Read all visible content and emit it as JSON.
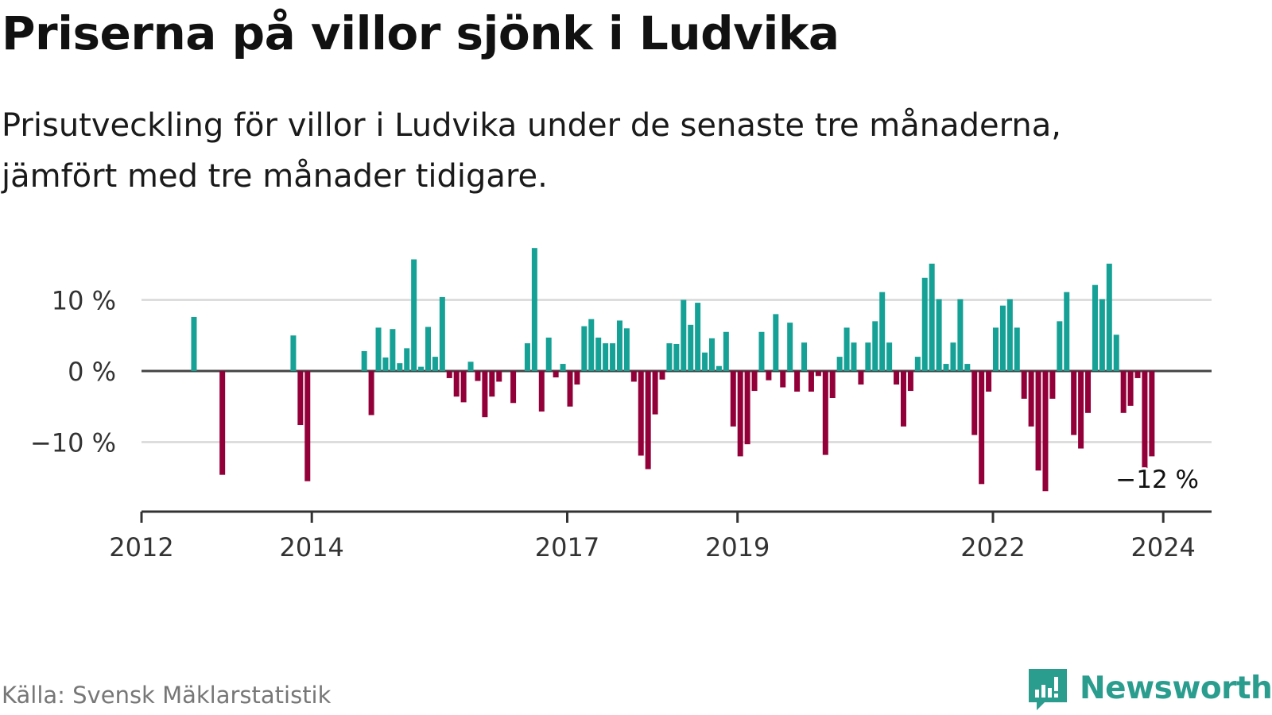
{
  "title": "Priserna på villor sjönk i Ludvika",
  "subtitle": "Prisutveckling för villor i Ludvika under de senaste tre månaderna, jämfört med tre månader tidigare.",
  "source": "Källa: Svensk Mäklarstatistik",
  "brand": "Newsworthy",
  "colors": {
    "positive": "#16a196",
    "negative": "#930039",
    "brand": "#2a9d8f"
  },
  "chart_data": {
    "type": "bar",
    "title": "Priserna på villor sjönk i Ludvika",
    "xlabel": "",
    "ylabel": "",
    "ylim": [
      -19.5,
      17.5
    ],
    "y_ticks": [
      {
        "value": 10,
        "label": "10 %"
      },
      {
        "value": 0,
        "label": "0 %"
      },
      {
        "value": -10,
        "label": "−10 %"
      }
    ],
    "x_ticks": [
      {
        "pos": 0,
        "label": "2012"
      },
      {
        "pos": 24,
        "label": "2014"
      },
      {
        "pos": 60,
        "label": "2017"
      },
      {
        "pos": 84,
        "label": "2019"
      },
      {
        "pos": 120,
        "label": "2022"
      },
      {
        "pos": 144,
        "label": "2024"
      }
    ],
    "annotation": {
      "label": "−12 %",
      "index": 143
    },
    "series": [
      {
        "name": "Prisutveckling",
        "start": "2012-01",
        "values": [
          null,
          null,
          null,
          null,
          null,
          null,
          null,
          7.6,
          null,
          null,
          null,
          -14.6,
          null,
          null,
          null,
          null,
          null,
          null,
          null,
          null,
          null,
          5.0,
          -7.6,
          -15.5,
          null,
          null,
          null,
          null,
          null,
          null,
          null,
          2.8,
          -6.2,
          6.1,
          1.9,
          5.9,
          1.1,
          3.2,
          15.7,
          0.6,
          6.2,
          2.0,
          10.4,
          -1.0,
          -3.6,
          -4.4,
          1.3,
          -1.4,
          -6.5,
          -3.6,
          -1.5,
          null,
          -4.5,
          null,
          3.9,
          17.3,
          -5.7,
          4.7,
          -0.9,
          1.0,
          -5.0,
          -1.9,
          6.3,
          7.3,
          4.7,
          3.9,
          3.9,
          7.1,
          6.0,
          -1.5,
          -11.9,
          -13.8,
          -6.1,
          -1.2,
          3.9,
          3.8,
          10.0,
          6.5,
          9.6,
          2.6,
          4.6,
          0.7,
          5.5,
          -7.8,
          -12.0,
          -10.3,
          -2.8,
          5.5,
          -1.3,
          8.0,
          -2.3,
          6.8,
          -2.9,
          4.0,
          -2.9,
          -0.7,
          -11.8,
          -3.8,
          2.0,
          6.1,
          4.0,
          -1.9,
          4.0,
          7.0,
          11.1,
          4.0,
          -1.9,
          -7.8,
          -2.8,
          2.0,
          13.1,
          15.1,
          10.1,
          1.0,
          4.0,
          10.1,
          1.0,
          -9.0,
          -15.9,
          -2.9,
          6.1,
          9.2,
          10.1,
          6.1,
          -3.9,
          -7.8,
          -14.0,
          -16.9,
          -3.9,
          7.0,
          11.1,
          -9.0,
          -10.9,
          -5.9,
          12.1,
          10.1,
          15.1,
          5.1,
          -5.9,
          -4.9,
          -1.0,
          -14.0,
          -12.0
        ]
      }
    ]
  }
}
